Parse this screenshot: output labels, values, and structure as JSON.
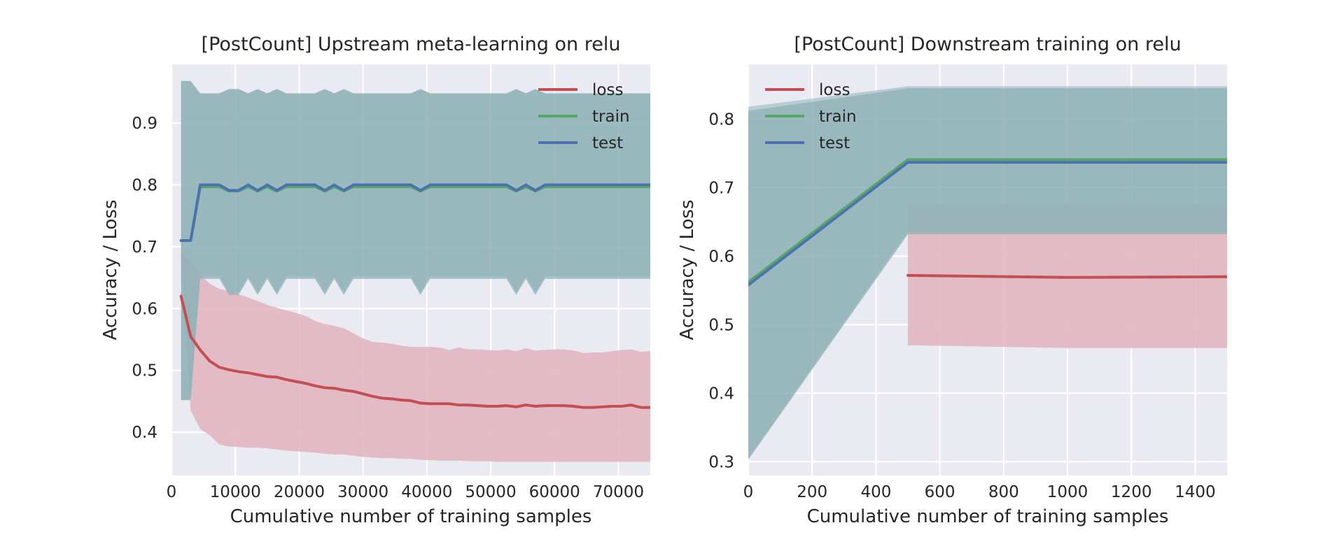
{
  "colors": {
    "plot_bg": "#eaeaf2",
    "grid": "#ffffff",
    "loss": "#c44e52",
    "train": "#55a868",
    "test": "#4c72b0",
    "band_accuracy": "#8fb2b7",
    "band_loss": "#e1b6bf"
  },
  "chart_data": [
    {
      "type": "line",
      "title": "[PostCount] Upstream meta-learning on relu",
      "xlabel": "Cumulative number of training samples",
      "ylabel": "Accuracy / Loss",
      "xlim": [
        0,
        75000
      ],
      "ylim": [
        0.33,
        0.995
      ],
      "xticks": [
        0,
        10000,
        20000,
        30000,
        40000,
        50000,
        60000,
        70000
      ],
      "yticks": [
        0.4,
        0.5,
        0.6,
        0.7,
        0.8,
        0.9
      ],
      "grid": true,
      "legend": {
        "position": "top-right",
        "entries": [
          "loss",
          "train",
          "test"
        ]
      },
      "x": [
        1500,
        3000,
        4500,
        6000,
        7500,
        9000,
        10500,
        12000,
        13500,
        15000,
        16500,
        18000,
        19500,
        21000,
        22500,
        24000,
        25500,
        27000,
        28500,
        30000,
        31500,
        33000,
        34500,
        36000,
        37500,
        39000,
        40500,
        42000,
        43500,
        45000,
        46500,
        48000,
        49500,
        51000,
        52500,
        54000,
        55500,
        57000,
        58500,
        60000,
        61500,
        63000,
        64500,
        66000,
        67500,
        69000,
        70500,
        72000,
        73500,
        75000
      ],
      "series": [
        {
          "name": "loss",
          "color": "#c44e52",
          "values": [
            0.62,
            0.555,
            0.533,
            0.515,
            0.505,
            0.501,
            0.498,
            0.496,
            0.493,
            0.49,
            0.489,
            0.485,
            0.482,
            0.479,
            0.475,
            0.472,
            0.471,
            0.468,
            0.466,
            0.462,
            0.458,
            0.455,
            0.454,
            0.452,
            0.451,
            0.447,
            0.446,
            0.446,
            0.446,
            0.444,
            0.444,
            0.443,
            0.442,
            0.442,
            0.443,
            0.441,
            0.444,
            0.442,
            0.443,
            0.443,
            0.443,
            0.442,
            0.44,
            0.44,
            0.441,
            0.442,
            0.442,
            0.444,
            0.44,
            0.44
          ],
          "lower": [
            0.69,
            0.435,
            0.405,
            0.395,
            0.38,
            0.377,
            0.376,
            0.375,
            0.375,
            0.374,
            0.372,
            0.37,
            0.369,
            0.368,
            0.367,
            0.365,
            0.364,
            0.364,
            0.362,
            0.36,
            0.359,
            0.358,
            0.358,
            0.357,
            0.357,
            0.355,
            0.355,
            0.354,
            0.354,
            0.354,
            0.353,
            0.353,
            0.353,
            0.352,
            0.352,
            0.352,
            0.352,
            0.352,
            0.352,
            0.352,
            0.352,
            0.352,
            0.352,
            0.352,
            0.352,
            0.352,
            0.352,
            0.352,
            0.352,
            0.352
          ],
          "upper": [
            0.69,
            0.675,
            0.655,
            0.64,
            0.632,
            0.628,
            0.623,
            0.618,
            0.612,
            0.606,
            0.601,
            0.597,
            0.593,
            0.588,
            0.58,
            0.575,
            0.572,
            0.568,
            0.56,
            0.552,
            0.546,
            0.545,
            0.543,
            0.54,
            0.538,
            0.538,
            0.538,
            0.537,
            0.533,
            0.537,
            0.534,
            0.534,
            0.533,
            0.532,
            0.534,
            0.531,
            0.536,
            0.532,
            0.533,
            0.534,
            0.534,
            0.532,
            0.528,
            0.529,
            0.529,
            0.531,
            0.533,
            0.534,
            0.53,
            0.531
          ]
        },
        {
          "name": "train",
          "color": "#55a868",
          "values": [
            0.71,
            0.71,
            0.797,
            0.797,
            0.797,
            0.79,
            0.79,
            0.797,
            0.79,
            0.797,
            0.79,
            0.797,
            0.797,
            0.797,
            0.797,
            0.79,
            0.797,
            0.79,
            0.797,
            0.797,
            0.797,
            0.797,
            0.797,
            0.797,
            0.797,
            0.79,
            0.797,
            0.797,
            0.797,
            0.797,
            0.797,
            0.797,
            0.797,
            0.797,
            0.797,
            0.79,
            0.797,
            0.79,
            0.797,
            0.797,
            0.797,
            0.797,
            0.797,
            0.797,
            0.797,
            0.797,
            0.797,
            0.797,
            0.797,
            0.797
          ],
          "lower": [
            0.452,
            0.452,
            0.652,
            0.652,
            0.652,
            0.626,
            0.626,
            0.652,
            0.626,
            0.652,
            0.626,
            0.652,
            0.652,
            0.652,
            0.652,
            0.626,
            0.652,
            0.626,
            0.652,
            0.652,
            0.652,
            0.652,
            0.652,
            0.652,
            0.652,
            0.626,
            0.652,
            0.652,
            0.652,
            0.652,
            0.652,
            0.652,
            0.652,
            0.652,
            0.652,
            0.626,
            0.652,
            0.626,
            0.652,
            0.652,
            0.652,
            0.652,
            0.652,
            0.652,
            0.652,
            0.652,
            0.652,
            0.652,
            0.652,
            0.652
          ],
          "upper": [
            0.968,
            0.968,
            0.948,
            0.948,
            0.948,
            0.955,
            0.955,
            0.948,
            0.955,
            0.948,
            0.955,
            0.948,
            0.948,
            0.948,
            0.948,
            0.955,
            0.948,
            0.955,
            0.948,
            0.948,
            0.948,
            0.948,
            0.948,
            0.948,
            0.948,
            0.955,
            0.948,
            0.948,
            0.948,
            0.948,
            0.948,
            0.948,
            0.948,
            0.948,
            0.948,
            0.955,
            0.948,
            0.955,
            0.948,
            0.948,
            0.948,
            0.948,
            0.948,
            0.948,
            0.948,
            0.948,
            0.948,
            0.948,
            0.948,
            0.948
          ]
        },
        {
          "name": "test",
          "color": "#4c72b0",
          "values": [
            0.71,
            0.71,
            0.8,
            0.8,
            0.8,
            0.791,
            0.791,
            0.8,
            0.791,
            0.8,
            0.791,
            0.8,
            0.8,
            0.8,
            0.8,
            0.791,
            0.8,
            0.791,
            0.8,
            0.8,
            0.8,
            0.8,
            0.8,
            0.8,
            0.8,
            0.791,
            0.8,
            0.8,
            0.8,
            0.8,
            0.8,
            0.8,
            0.8,
            0.8,
            0.8,
            0.791,
            0.8,
            0.791,
            0.8,
            0.8,
            0.8,
            0.8,
            0.8,
            0.8,
            0.8,
            0.8,
            0.8,
            0.8,
            0.8,
            0.8
          ],
          "lower": [
            0.452,
            0.452,
            0.648,
            0.648,
            0.648,
            0.622,
            0.622,
            0.648,
            0.622,
            0.648,
            0.622,
            0.648,
            0.648,
            0.648,
            0.648,
            0.622,
            0.648,
            0.622,
            0.648,
            0.648,
            0.648,
            0.648,
            0.648,
            0.648,
            0.648,
            0.622,
            0.648,
            0.648,
            0.648,
            0.648,
            0.648,
            0.648,
            0.648,
            0.648,
            0.648,
            0.622,
            0.648,
            0.622,
            0.648,
            0.648,
            0.648,
            0.648,
            0.648,
            0.648,
            0.648,
            0.648,
            0.648,
            0.648,
            0.648,
            0.648
          ],
          "upper": [
            0.968,
            0.968,
            0.948,
            0.948,
            0.948,
            0.955,
            0.955,
            0.948,
            0.955,
            0.948,
            0.955,
            0.948,
            0.948,
            0.948,
            0.948,
            0.955,
            0.948,
            0.955,
            0.948,
            0.948,
            0.948,
            0.948,
            0.948,
            0.948,
            0.948,
            0.955,
            0.948,
            0.948,
            0.948,
            0.948,
            0.948,
            0.948,
            0.948,
            0.948,
            0.948,
            0.955,
            0.948,
            0.955,
            0.948,
            0.948,
            0.948,
            0.948,
            0.948,
            0.948,
            0.948,
            0.948,
            0.948,
            0.948,
            0.948,
            0.948
          ]
        }
      ]
    },
    {
      "type": "line",
      "title": "[PostCount] Downstream training on relu",
      "xlabel": "Cumulative number of training samples",
      "ylabel": "Accuracy / Loss",
      "xlim": [
        0,
        1500
      ],
      "ylim": [
        0.28,
        0.88
      ],
      "xticks": [
        0,
        200,
        400,
        600,
        800,
        1000,
        1200,
        1400
      ],
      "yticks": [
        0.3,
        0.4,
        0.5,
        0.6,
        0.7,
        0.8
      ],
      "grid": true,
      "legend": {
        "position": "top-left",
        "entries": [
          "loss",
          "train",
          "test"
        ]
      },
      "series": [
        {
          "name": "loss",
          "color": "#c44e52",
          "x": [
            500,
            1000,
            1500
          ],
          "values": [
            0.572,
            0.569,
            0.57
          ],
          "lower": [
            0.47,
            0.466,
            0.466
          ],
          "upper": [
            0.675,
            0.675,
            0.675
          ]
        },
        {
          "name": "train",
          "color": "#55a868",
          "x": [
            0,
            500,
            1000,
            1500
          ],
          "values": [
            0.562,
            0.741,
            0.741,
            0.741
          ],
          "lower": [
            0.305,
            0.636,
            0.636,
            0.636
          ],
          "upper": [
            0.818,
            0.848,
            0.848,
            0.848
          ]
        },
        {
          "name": "test",
          "color": "#4c72b0",
          "x": [
            0,
            500,
            1000,
            1500
          ],
          "values": [
            0.558,
            0.737,
            0.737,
            0.737
          ],
          "lower": [
            0.303,
            0.632,
            0.632,
            0.632
          ],
          "upper": [
            0.812,
            0.845,
            0.845,
            0.845
          ]
        }
      ]
    }
  ]
}
